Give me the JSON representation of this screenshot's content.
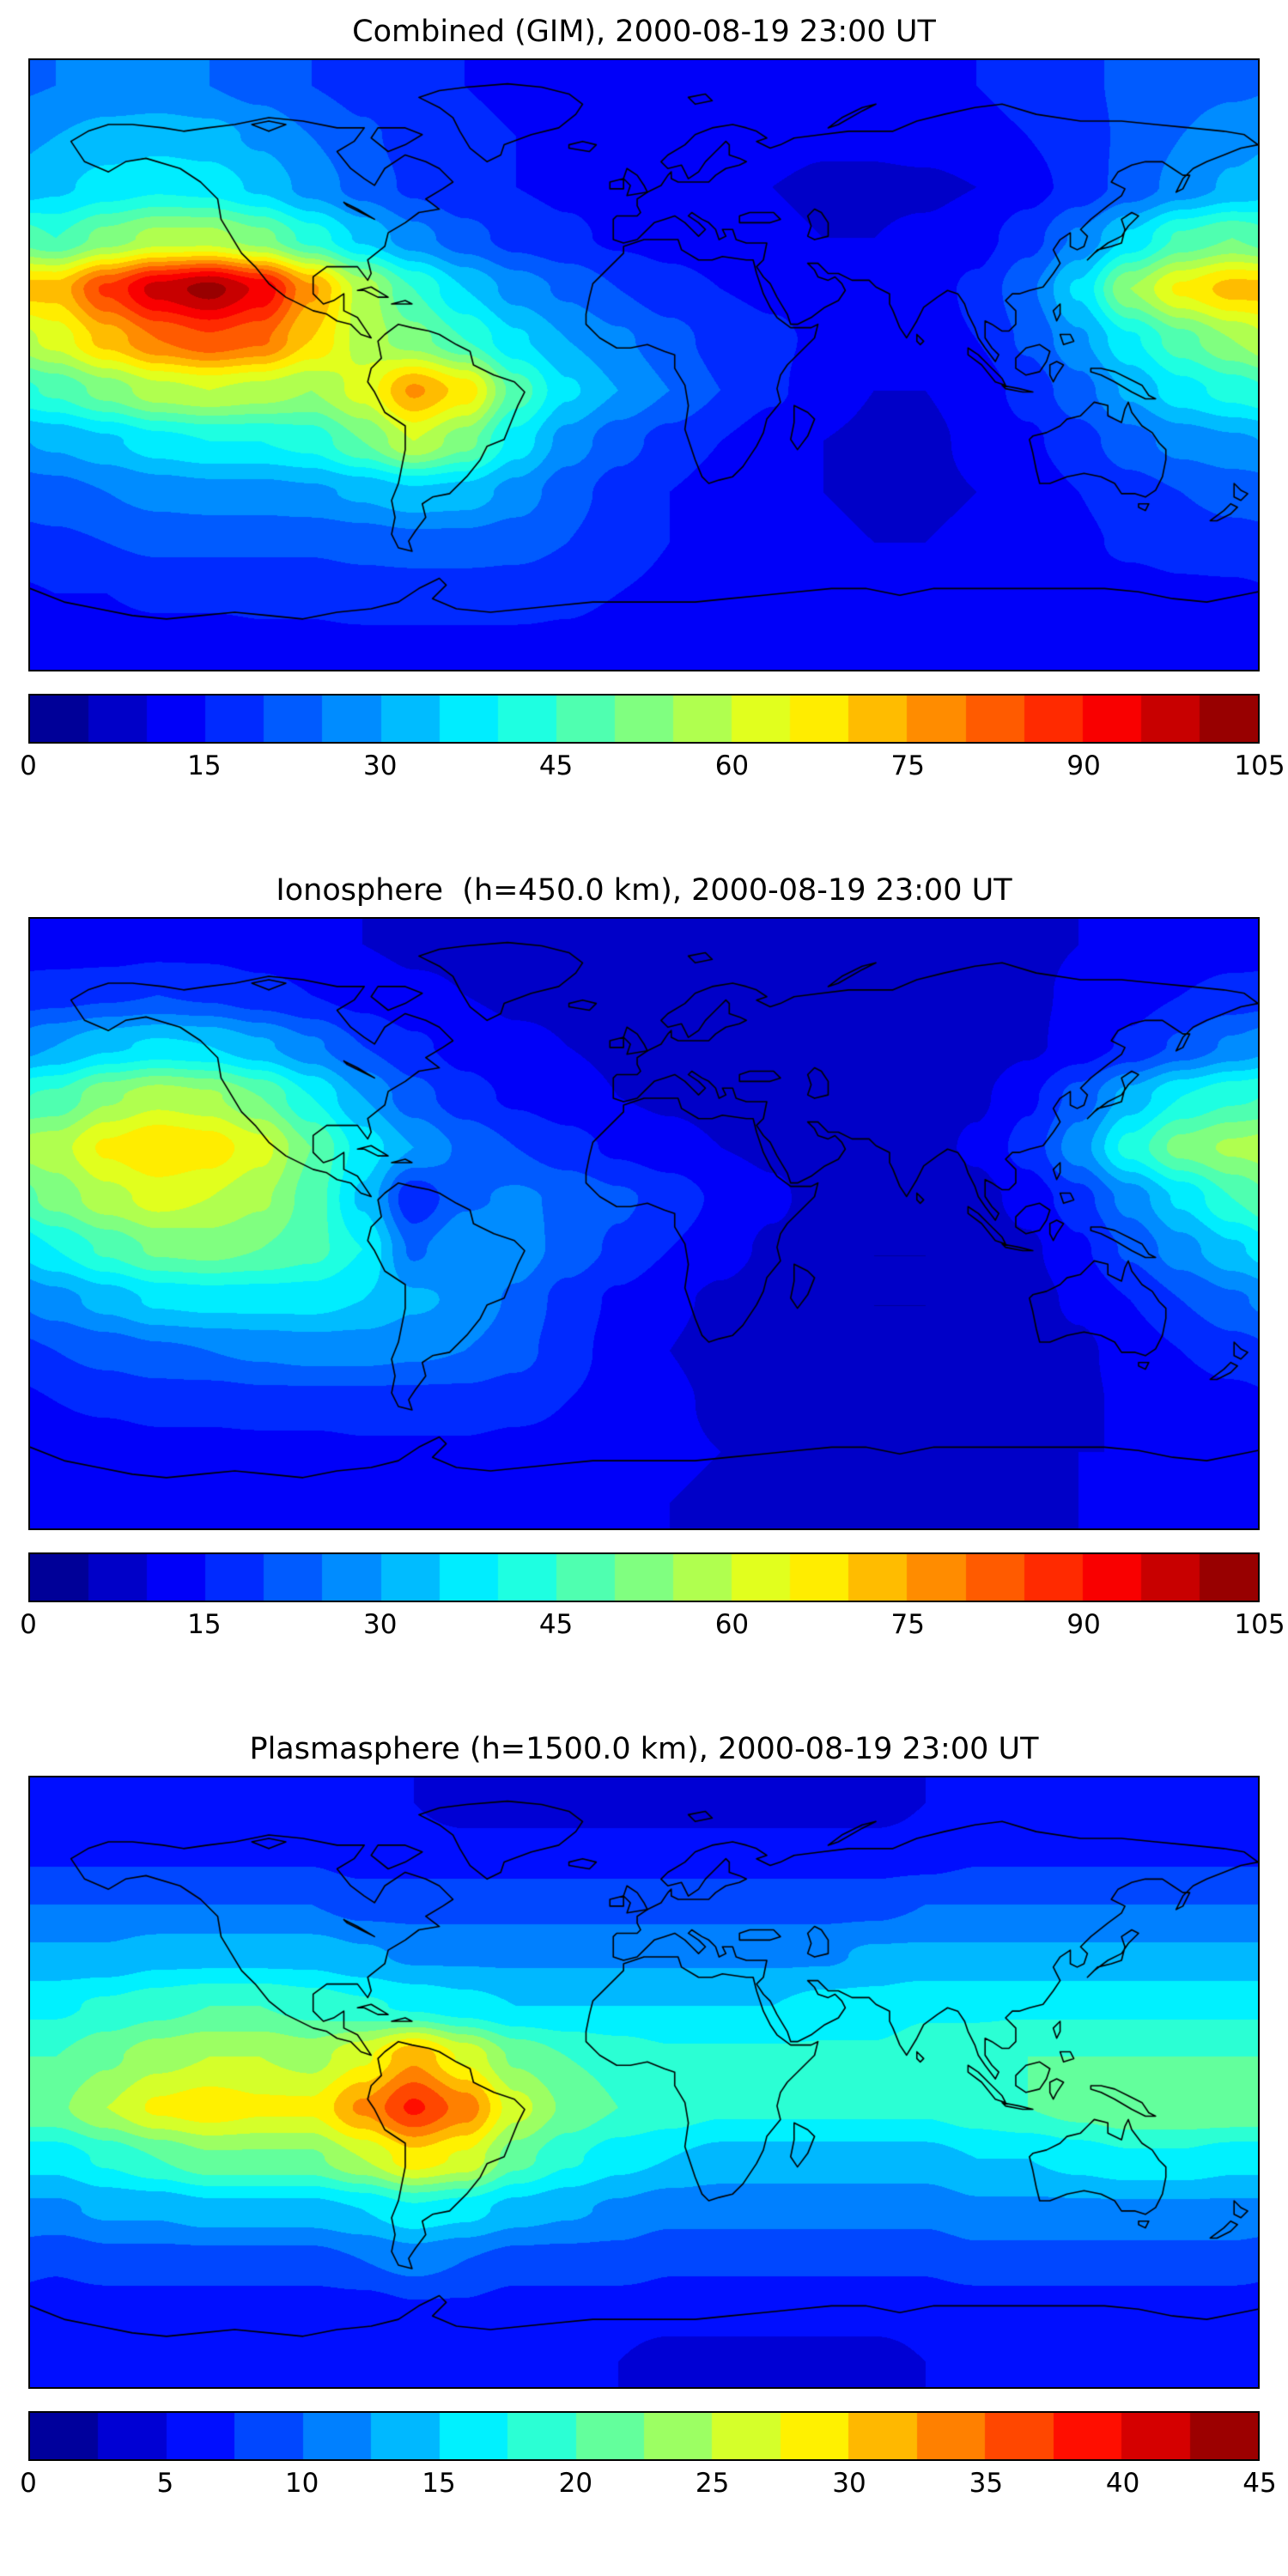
{
  "figure": {
    "background_color": "#ffffff",
    "text_color": "#000000",
    "coastline_color": "#000000"
  },
  "chart_data": [
    {
      "id": "combined",
      "type": "heatmap",
      "title": "Combined (GIM), 2000-08-19 23:00 UT",
      "projection": "equirectangular",
      "lon_range": [
        -180,
        180
      ],
      "lat_range": [
        -90,
        90
      ],
      "colormap": "jet",
      "legend_position": "bottom",
      "grid": false,
      "levels": {
        "min": 0,
        "max": 105,
        "step": 5
      },
      "colorbar_ticks": [
        0,
        15,
        30,
        45,
        60,
        75,
        90,
        105
      ],
      "grid_lon_deg": [
        -172.5,
        -157.5,
        -142.5,
        -127.5,
        -112.5,
        -97.5,
        -82.5,
        -67.5,
        -52.5,
        -37.5,
        -22.5,
        -7.5,
        7.5,
        22.5,
        37.5,
        52.5,
        67.5,
        82.5,
        97.5,
        112.5,
        127.5,
        142.5,
        157.5,
        172.5
      ],
      "grid_lat_deg": [
        82.5,
        67.5,
        52.5,
        37.5,
        22.5,
        7.5,
        -7.5,
        -22.5,
        -37.5,
        -52.5,
        -67.5,
        -82.5
      ],
      "values": [
        [
          25,
          26,
          26,
          25,
          23,
          20,
          18,
          16,
          15,
          14,
          14,
          14,
          13,
          13,
          13,
          13,
          13,
          14,
          15,
          17,
          19,
          21,
          23,
          24
        ],
        [
          30,
          32,
          33,
          32,
          29,
          25,
          21,
          18,
          16,
          15,
          14,
          14,
          13,
          12,
          12,
          11,
          11,
          12,
          13,
          15,
          18,
          21,
          25,
          28
        ],
        [
          34,
          37,
          39,
          38,
          34,
          28,
          23,
          19,
          16,
          15,
          14,
          13,
          12,
          11,
          10,
          9,
          9,
          9,
          10,
          13,
          17,
          22,
          27,
          31
        ],
        [
          45,
          52,
          57,
          57,
          52,
          43,
          34,
          27,
          22,
          18,
          16,
          14,
          13,
          12,
          11,
          10,
          10,
          11,
          13,
          18,
          26,
          36,
          46,
          50
        ],
        [
          72,
          86,
          97,
          102,
          94,
          76,
          58,
          45,
          35,
          28,
          24,
          20,
          17,
          15,
          14,
          13,
          12,
          13,
          16,
          24,
          36,
          55,
          66,
          72
        ],
        [
          62,
          72,
          80,
          84,
          81,
          70,
          58,
          52,
          45,
          36,
          30,
          26,
          22,
          18,
          16,
          14,
          12,
          13,
          15,
          21,
          29,
          39,
          48,
          55
        ],
        [
          46,
          52,
          58,
          60,
          58,
          55,
          62,
          76,
          68,
          48,
          36,
          30,
          25,
          20,
          16,
          12,
          10,
          10,
          12,
          17,
          23,
          31,
          38,
          42
        ],
        [
          31,
          34,
          38,
          40,
          40,
          42,
          50,
          60,
          52,
          38,
          28,
          22,
          18,
          15,
          12,
          10,
          9,
          9,
          11,
          14,
          18,
          23,
          27,
          29
        ],
        [
          23,
          25,
          27,
          28,
          28,
          29,
          31,
          34,
          33,
          28,
          22,
          18,
          15,
          13,
          11,
          10,
          9,
          9,
          10,
          12,
          15,
          18,
          20,
          22
        ],
        [
          19,
          20,
          21,
          21,
          21,
          21,
          22,
          23,
          23,
          22,
          20,
          17,
          15,
          13,
          12,
          11,
          10,
          10,
          11,
          12,
          14,
          16,
          17,
          18
        ],
        [
          15,
          15,
          16,
          16,
          16,
          16,
          17,
          17,
          17,
          17,
          16,
          15,
          14,
          13,
          12,
          12,
          11,
          11,
          12,
          12,
          13,
          13,
          14,
          14
        ],
        [
          13,
          13,
          13,
          13,
          14,
          14,
          14,
          14,
          14,
          14,
          14,
          13,
          13,
          12,
          12,
          12,
          12,
          12,
          12,
          12,
          12,
          13,
          13,
          13
        ]
      ]
    },
    {
      "id": "ionosphere",
      "type": "heatmap",
      "title": "Ionosphere  (h=450.0 km), 2000-08-19 23:00 UT",
      "projection": "equirectangular",
      "lon_range": [
        -180,
        180
      ],
      "lat_range": [
        -90,
        90
      ],
      "colormap": "jet",
      "legend_position": "bottom",
      "grid": false,
      "levels": {
        "min": 0,
        "max": 105,
        "step": 5
      },
      "colorbar_ticks": [
        0,
        15,
        30,
        45,
        60,
        75,
        90,
        105
      ],
      "grid_lon_deg": [
        -172.5,
        -157.5,
        -142.5,
        -127.5,
        -112.5,
        -97.5,
        -82.5,
        -67.5,
        -52.5,
        -37.5,
        -22.5,
        -7.5,
        7.5,
        22.5,
        37.5,
        52.5,
        67.5,
        82.5,
        97.5,
        112.5,
        127.5,
        142.5,
        157.5,
        172.5
      ],
      "grid_lat_deg": [
        82.5,
        67.5,
        52.5,
        37.5,
        22.5,
        7.5,
        -7.5,
        -22.5,
        -37.5,
        -52.5,
        -67.5,
        -82.5
      ],
      "values": [
        [
          12,
          12,
          13,
          13,
          12,
          11,
          10,
          9,
          9,
          9,
          9,
          9,
          8,
          8,
          8,
          8,
          8,
          8,
          9,
          9,
          10,
          11,
          11,
          12
        ],
        [
          18,
          19,
          20,
          19,
          17,
          15,
          13,
          11,
          10,
          9,
          9,
          9,
          8,
          8,
          7,
          7,
          7,
          7,
          8,
          9,
          11,
          13,
          15,
          17
        ],
        [
          30,
          34,
          36,
          35,
          31,
          26,
          20,
          16,
          13,
          11,
          10,
          9,
          8,
          8,
          7,
          6,
          6,
          6,
          7,
          9,
          12,
          16,
          21,
          26
        ],
        [
          46,
          54,
          58,
          56,
          50,
          40,
          30,
          22,
          17,
          14,
          12,
          10,
          9,
          8,
          8,
          7,
          7,
          7,
          9,
          14,
          22,
          32,
          40,
          44
        ],
        [
          58,
          66,
          70,
          68,
          62,
          50,
          38,
          30,
          24,
          20,
          17,
          14,
          12,
          10,
          9,
          8,
          8,
          8,
          11,
          17,
          28,
          42,
          52,
          56
        ],
        [
          52,
          58,
          62,
          60,
          56,
          48,
          34,
          16,
          24,
          26,
          24,
          21,
          18,
          14,
          11,
          8,
          6,
          6,
          8,
          12,
          18,
          27,
          36,
          45
        ],
        [
          40,
          46,
          51,
          52,
          50,
          47,
          40,
          24,
          30,
          28,
          23,
          19,
          15,
          12,
          9,
          7,
          5,
          5,
          6,
          9,
          14,
          21,
          28,
          34
        ],
        [
          28,
          32,
          36,
          37,
          37,
          37,
          35,
          31,
          29,
          24,
          18,
          14,
          11,
          9,
          7,
          6,
          5,
          5,
          6,
          8,
          11,
          15,
          20,
          24
        ],
        [
          20,
          22,
          24,
          25,
          26,
          27,
          27,
          26,
          25,
          22,
          17,
          13,
          10,
          8,
          7,
          6,
          5,
          5,
          6,
          7,
          9,
          12,
          15,
          18
        ],
        [
          15,
          16,
          17,
          17,
          18,
          18,
          18,
          18,
          18,
          17,
          15,
          13,
          11,
          9,
          8,
          7,
          6,
          6,
          7,
          8,
          9,
          11,
          12,
          13
        ],
        [
          12,
          12,
          13,
          13,
          13,
          13,
          14,
          14,
          14,
          13,
          13,
          12,
          11,
          10,
          9,
          9,
          8,
          8,
          9,
          9,
          10,
          10,
          11,
          11
        ],
        [
          10,
          10,
          10,
          10,
          11,
          11,
          11,
          11,
          11,
          11,
          11,
          10,
          10,
          9,
          9,
          9,
          9,
          9,
          9,
          9,
          10,
          10,
          10,
          10
        ]
      ]
    },
    {
      "id": "plasmasphere",
      "type": "heatmap",
      "title": "Plasmasphere (h=1500.0 km), 2000-08-19 23:00 UT",
      "projection": "equirectangular",
      "lon_range": [
        -180,
        180
      ],
      "lat_range": [
        -90,
        90
      ],
      "colormap": "jet",
      "legend_position": "bottom",
      "grid": false,
      "levels": {
        "min": 0,
        "max": 45,
        "step": 2.5
      },
      "colorbar_ticks": [
        0,
        5,
        10,
        15,
        20,
        25,
        30,
        35,
        40,
        45
      ],
      "grid_lon_deg": [
        -172.5,
        -157.5,
        -142.5,
        -127.5,
        -112.5,
        -97.5,
        -82.5,
        -67.5,
        -52.5,
        -37.5,
        -22.5,
        -7.5,
        7.5,
        22.5,
        37.5,
        52.5,
        67.5,
        82.5,
        97.5,
        112.5,
        127.5,
        142.5,
        157.5,
        172.5
      ],
      "grid_lat_deg": [
        82.5,
        67.5,
        52.5,
        37.5,
        22.5,
        7.5,
        -7.5,
        -22.5,
        -37.5,
        -52.5,
        -67.5,
        -82.5
      ],
      "values": [
        [
          5,
          5,
          5,
          5,
          5,
          5,
          5,
          5,
          4,
          4,
          4,
          4,
          4,
          4,
          4,
          4,
          4,
          5,
          5,
          5,
          5,
          5,
          5,
          5
        ],
        [
          7,
          7,
          7,
          7,
          7,
          7,
          6,
          6,
          6,
          6,
          6,
          6,
          6,
          6,
          6,
          6,
          6,
          6,
          7,
          7,
          7,
          7,
          7,
          7
        ],
        [
          10,
          10,
          10,
          10,
          10,
          10,
          9,
          9,
          9,
          9,
          9,
          9,
          9,
          9,
          9,
          9,
          9,
          10,
          10,
          10,
          10,
          10,
          10,
          10
        ],
        [
          13,
          13,
          14,
          14,
          14,
          14,
          13,
          12,
          12,
          12,
          12,
          12,
          12,
          12,
          12,
          12,
          13,
          13,
          13,
          13,
          13,
          13,
          13,
          13
        ],
        [
          17,
          18,
          19,
          20,
          20,
          19,
          18,
          17,
          16,
          15,
          15,
          15,
          15,
          15,
          15,
          16,
          16,
          17,
          17,
          17,
          17,
          17,
          17,
          17
        ],
        [
          20,
          22,
          24,
          25,
          25,
          24,
          27,
          32,
          27,
          22,
          20,
          19,
          18,
          18,
          18,
          18,
          18,
          19,
          19,
          20,
          20,
          20,
          20,
          20
        ],
        [
          22,
          25,
          28,
          29,
          28,
          28,
          33,
          38,
          34,
          26,
          22,
          20,
          19,
          18,
          18,
          18,
          18,
          18,
          19,
          20,
          21,
          22,
          22,
          22
        ],
        [
          16,
          18,
          20,
          22,
          22,
          22,
          25,
          29,
          27,
          21,
          18,
          16,
          15,
          14,
          14,
          14,
          14,
          14,
          15,
          15,
          16,
          17,
          17,
          16
        ],
        [
          12,
          13,
          13,
          14,
          14,
          14,
          15,
          17,
          16,
          14,
          13,
          12,
          11,
          11,
          11,
          11,
          11,
          11,
          12,
          12,
          12,
          12,
          12,
          12
        ],
        [
          8,
          9,
          9,
          9,
          9,
          9,
          10,
          11,
          10,
          9,
          9,
          9,
          8,
          8,
          8,
          8,
          8,
          8,
          9,
          9,
          9,
          9,
          9,
          9
        ],
        [
          6,
          6,
          6,
          6,
          6,
          6,
          6,
          7,
          7,
          6,
          6,
          6,
          6,
          6,
          6,
          6,
          6,
          6,
          6,
          6,
          6,
          6,
          6,
          6
        ],
        [
          5,
          5,
          5,
          5,
          5,
          5,
          5,
          5,
          5,
          5,
          5,
          5,
          4,
          4,
          4,
          4,
          4,
          5,
          5,
          5,
          5,
          5,
          5,
          5
        ]
      ]
    }
  ]
}
